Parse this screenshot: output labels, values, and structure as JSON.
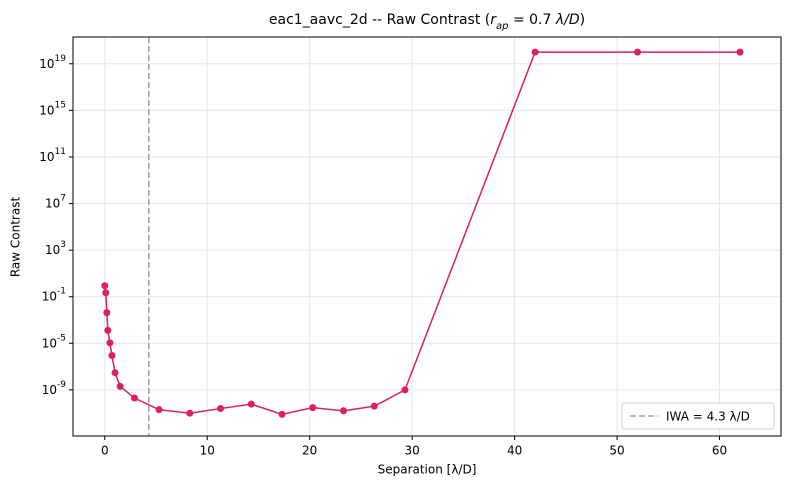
{
  "chart_data": {
    "type": "line",
    "title": [
      "eac1_aavc_2d -- Raw Contrast (",
      "r",
      "ap",
      " = 0.7 ",
      "λ/D",
      ")"
    ],
    "x_label": "Separation [λ/D]",
    "y_label": "Raw Contrast",
    "log_y": true,
    "grid": true,
    "x": [
      0.0,
      0.1,
      0.2,
      0.3,
      0.5,
      0.7,
      1.0,
      1.5,
      2.9,
      5.3,
      8.3,
      11.3,
      14.3,
      17.3,
      20.3,
      23.3,
      26.3,
      29.3,
      42,
      52,
      62
    ],
    "series": [
      {
        "name": "Raw Contrast",
        "color": "#dc1f62",
        "values": [
          0.87,
          0.22,
          0.0043,
          0.00013,
          1.1e-05,
          9e-07,
          3e-08,
          2e-09,
          2e-10,
          2e-11,
          1e-11,
          2.5e-11,
          6e-11,
          8e-12,
          3e-11,
          1.6e-11,
          4e-11,
          1e-09,
          1e+20,
          1e+20,
          1e+20
        ]
      }
    ],
    "vline": {
      "x": 4.3,
      "color": "#a0a0a0",
      "label": "IWA = 4.3 λ/D"
    },
    "legend": "lower right",
    "xlim": [
      -3.1,
      66.0
    ],
    "ylim": [
      1.1e-13,
      2e+21
    ],
    "xticks": [
      0,
      10,
      20,
      30,
      40,
      50,
      60
    ],
    "yticks": [
      {
        "value": 1e-09,
        "label": "10^-9"
      },
      {
        "value": 1e-05,
        "label": "10^-5"
      },
      {
        "value": 0.1,
        "label": "10^-1"
      },
      {
        "value": 1000.0,
        "label": "10^3"
      },
      {
        "value": 10000000.0,
        "label": "10^7"
      },
      {
        "value": 100000000000.0,
        "label": "10^11"
      },
      {
        "value": 1000000000000000.0,
        "label": "10^15"
      },
      {
        "value": 1e+19,
        "label": "10^19"
      }
    ]
  }
}
